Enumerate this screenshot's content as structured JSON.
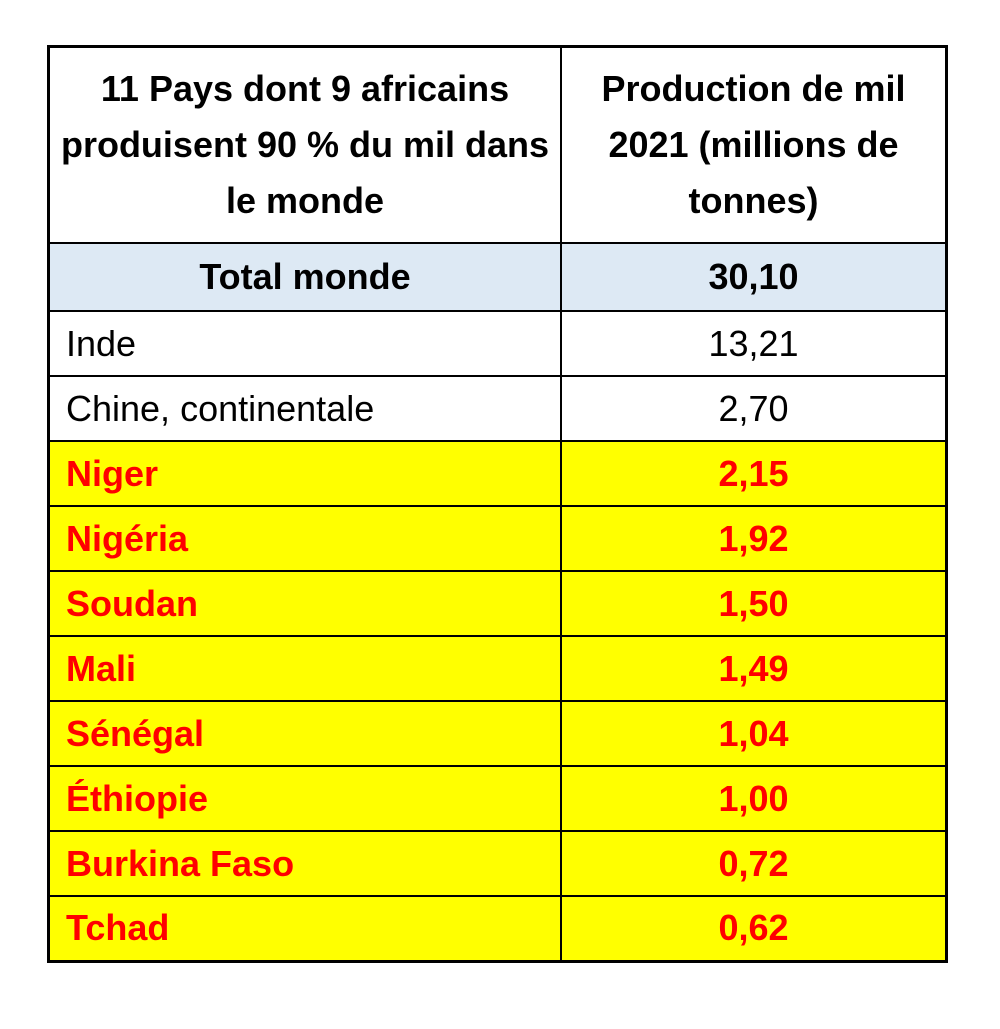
{
  "table": {
    "header": [
      "11 Pays dont 9 africains produisent 90 % du mil dans le monde",
      "Production de mil 2021 (millions de tonnes)"
    ],
    "rows": [
      [
        "Total monde",
        "30,10"
      ],
      [
        "Inde",
        "13,21"
      ],
      [
        "Chine, continentale",
        "2,70"
      ],
      [
        "Niger",
        "2,15"
      ],
      [
        "Nigéria",
        "1,92"
      ],
      [
        "Soudan",
        "1,50"
      ],
      [
        "Mali",
        "1,49"
      ],
      [
        "Sénégal",
        "1,04"
      ],
      [
        "Éthiopie",
        "1,00"
      ],
      [
        "Burkina Faso",
        "0,72"
      ],
      [
        "Tchad",
        "0,62"
      ]
    ]
  }
}
